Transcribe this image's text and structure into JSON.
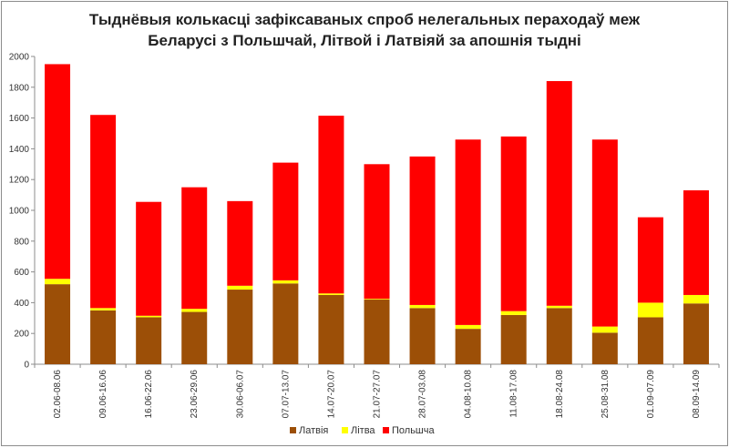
{
  "chart_data": {
    "type": "bar",
    "stacked": true,
    "title": "Тыднёвыя колькасці зафіксаваных спроб нелегальных пераходаў меж Беларусі з Польшчай, Літвой і Латвіяй за апошнія тыдні",
    "title_lines": [
      "Тыднёвыя колькасці зафіксаваных спроб нелегальных пераходаў меж",
      "Беларусі з Польшчай, Літвой і Латвіяй за апошнія тыдні"
    ],
    "xlabel": "",
    "ylabel": "",
    "ylim": [
      0,
      2000
    ],
    "yticks": [
      0,
      200,
      400,
      600,
      800,
      1000,
      1200,
      1400,
      1600,
      1800,
      2000
    ],
    "grid": false,
    "legend_position": "bottom",
    "categories": [
      "02.06-08.06",
      "09.06-16.06",
      "16.06-22.06",
      "23.06-29.06",
      "30.06-06.07",
      "07.07-13.07",
      "14.07-20.07",
      "21.07-27.07",
      "28.07-03.08",
      "04.08-10.08",
      "11.08-17.08",
      "18.08-24.08",
      "25.08-31.08",
      "01.09-07.09",
      "08.09-14.09"
    ],
    "series": [
      {
        "name": "Латвія",
        "color": "#9c4f07",
        "values": [
          520,
          350,
          305,
          340,
          485,
          525,
          450,
          420,
          365,
          230,
          320,
          365,
          205,
          305,
          395
        ]
      },
      {
        "name": "Літва",
        "color": "#ffff00",
        "values": [
          35,
          15,
          10,
          20,
          25,
          20,
          10,
          5,
          20,
          25,
          25,
          15,
          40,
          95,
          55
        ]
      },
      {
        "name": "Польшча",
        "color": "#ff0000",
        "values": [
          1395,
          1255,
          740,
          790,
          550,
          765,
          1155,
          875,
          965,
          1205,
          1135,
          1460,
          1215,
          555,
          680
        ]
      }
    ]
  }
}
